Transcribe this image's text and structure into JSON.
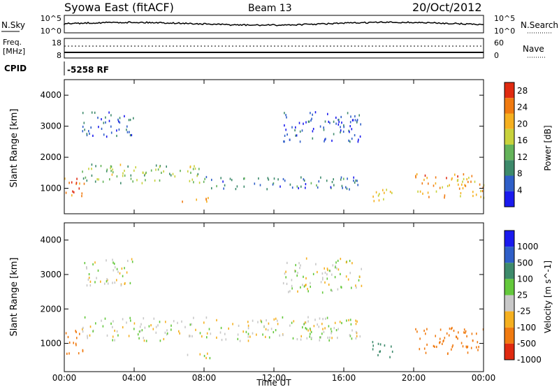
{
  "header": {
    "radar": "Syowa East (fitACF)",
    "beam": "Beam 13",
    "date": "20/Oct/2012"
  },
  "top_panels": {
    "nsky_label": "N.Sky",
    "nsearch_label": "N.Search",
    "freq_label_line1": "Freq.",
    "freq_label_line2": "[MHz]",
    "nave_label": "Nave",
    "cpid_label": "CPID",
    "cpid_value": "-5258 RF",
    "noise_ticks": [
      "10^5",
      "10^0"
    ],
    "freq_ticks": [
      "18",
      "8"
    ],
    "nave_ticks": [
      "60",
      "0"
    ]
  },
  "chart_data": [
    {
      "type": "heatmap",
      "panel": "power",
      "ylabel": "Slant Range [km]",
      "xlabel": "",
      "x_ticks": [
        "00:00",
        "04:00",
        "08:00",
        "12:00",
        "16:00",
        "20:00",
        "00:00"
      ],
      "y_ticks": [
        1000,
        2000,
        3000,
        4000
      ],
      "ylim": [
        180,
        4500
      ],
      "xlim_hours": [
        0,
        24
      ],
      "colorbar": {
        "label": "Power [dB]",
        "ticks": [
          4,
          8,
          12,
          16,
          20,
          24,
          28
        ],
        "range": [
          0,
          30
        ],
        "colors": [
          "#1a1aee",
          "#2f5fc8",
          "#3d8a6b",
          "#64b35a",
          "#c8d23c",
          "#f5b020",
          "#f07a10",
          "#e02a10"
        ]
      },
      "echo_regions": [
        {
          "t": [
            0.0,
            1.2
          ],
          "r": [
            700,
            1400
          ],
          "value": 24
        },
        {
          "t": [
            1.0,
            8.0
          ],
          "r": [
            1200,
            1800
          ],
          "value": 14
        },
        {
          "t": [
            8.0,
            17.0
          ],
          "r": [
            1000,
            1400
          ],
          "value": 8
        },
        {
          "t": [
            6.3,
            8.5
          ],
          "r": [
            600,
            750
          ],
          "value": 22
        },
        {
          "t": [
            17.5,
            18.8
          ],
          "r": [
            600,
            1100
          ],
          "value": 20
        },
        {
          "t": [
            20.0,
            24.0
          ],
          "r": [
            700,
            1500
          ],
          "value": 22
        },
        {
          "t": [
            1.0,
            4.0
          ],
          "r": [
            2700,
            3500
          ],
          "value": 6
        },
        {
          "t": [
            12.5,
            17.0
          ],
          "r": [
            2500,
            3500
          ],
          "value": 5
        }
      ]
    },
    {
      "type": "heatmap",
      "panel": "velocity",
      "ylabel": "Slant Range [km]",
      "xlabel": "Time UT",
      "x_ticks": [
        "00:00",
        "04:00",
        "08:00",
        "12:00",
        "16:00",
        "20:00",
        "00:00"
      ],
      "y_ticks": [
        1000,
        2000,
        3000,
        4000
      ],
      "ylim": [
        180,
        4500
      ],
      "xlim_hours": [
        0,
        24
      ],
      "colorbar": {
        "label": "Velocity [m s^-1]",
        "ticks": [
          "1000",
          "500",
          "100",
          "25",
          "-25",
          "-100",
          "-500",
          "-1000"
        ],
        "colors": [
          "#1a1aee",
          "#2f5fc8",
          "#3d8a6b",
          "#64c83c",
          "#c8c8c8",
          "#f5b020",
          "#f07a10",
          "#e02a10"
        ]
      },
      "echo_regions": [
        {
          "t": [
            0.0,
            1.2
          ],
          "r": [
            700,
            1400
          ],
          "value": -200
        },
        {
          "t": [
            1.0,
            17.0
          ],
          "r": [
            1100,
            1800
          ],
          "value": 0
        },
        {
          "t": [
            6.3,
            8.5
          ],
          "r": [
            600,
            750
          ],
          "value": 0
        },
        {
          "t": [
            17.5,
            18.8
          ],
          "r": [
            600,
            1100
          ],
          "value": 300
        },
        {
          "t": [
            20.0,
            24.0
          ],
          "r": [
            700,
            1500
          ],
          "value": -300
        },
        {
          "t": [
            1.0,
            4.0
          ],
          "r": [
            2700,
            3500
          ],
          "value": 0
        },
        {
          "t": [
            12.5,
            17.0
          ],
          "r": [
            2500,
            3500
          ],
          "value": 0
        }
      ]
    }
  ]
}
